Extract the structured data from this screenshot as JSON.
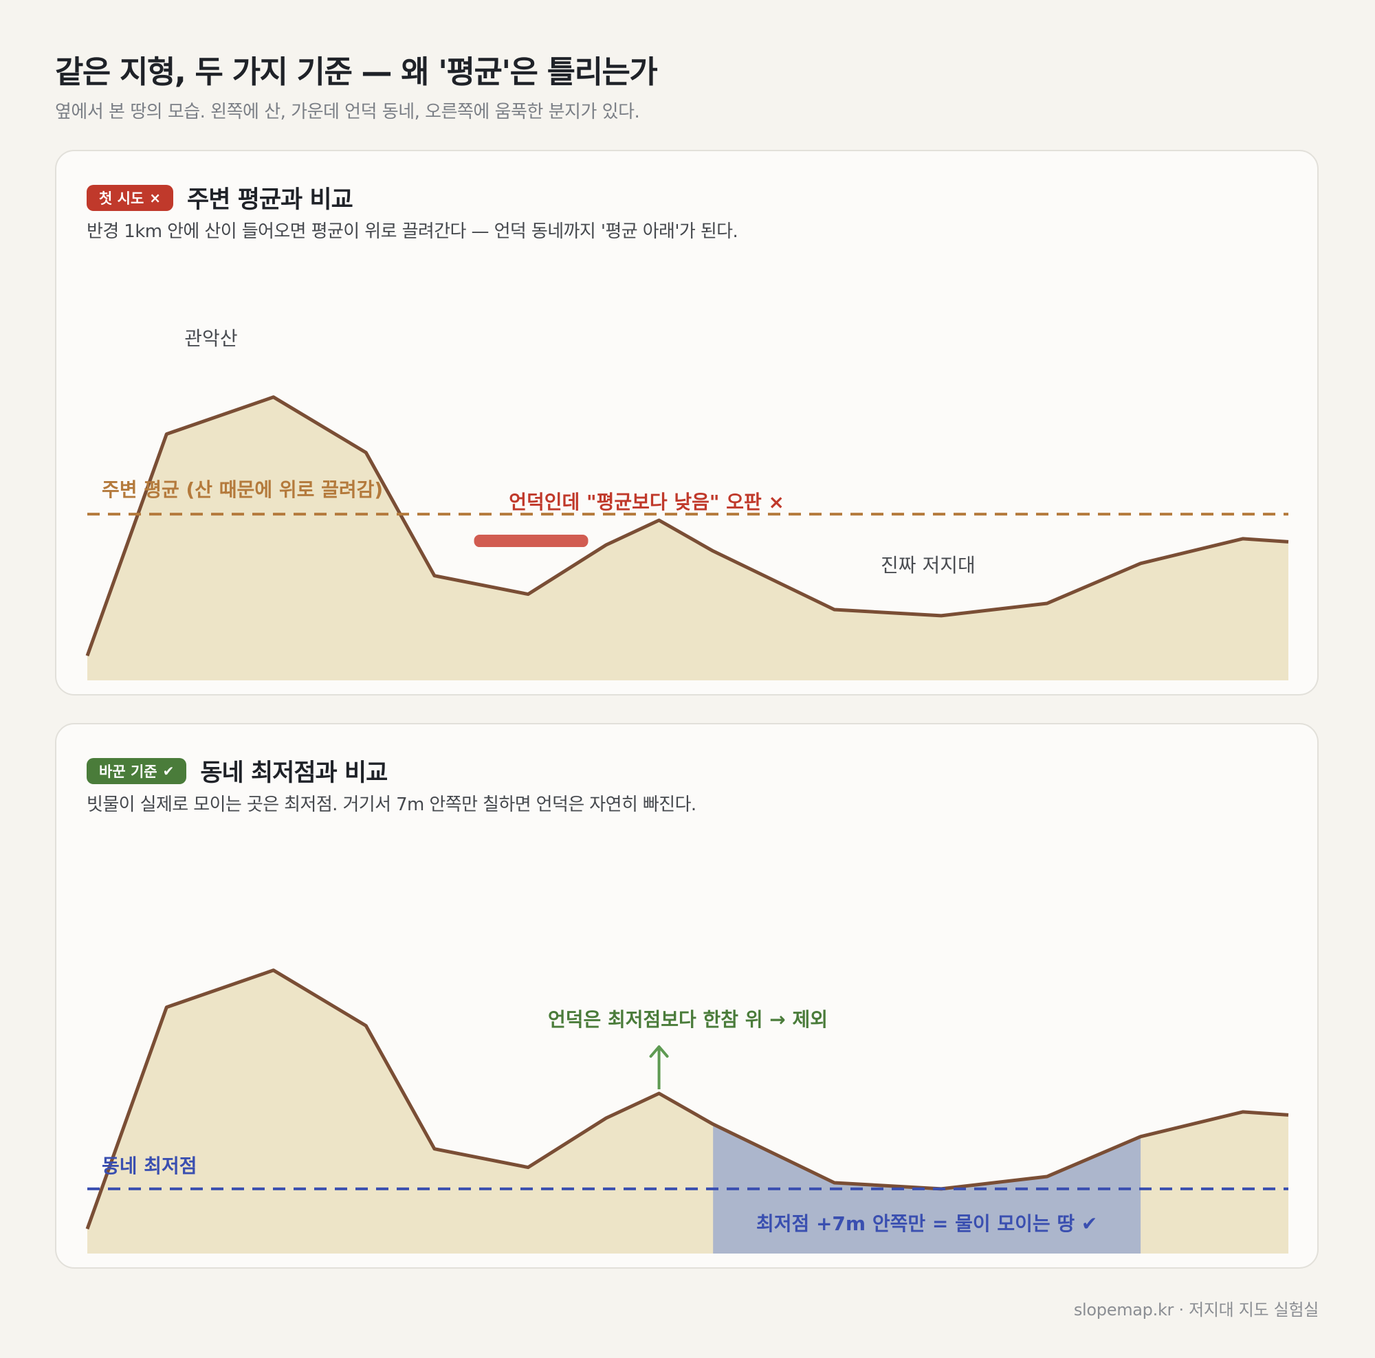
{
  "header": {
    "title": "같은 지형, 두 가지 기준 — 왜 '평균'은 틀리는가",
    "subtitle": "옆에서 본 땅의 모습. 왼쪽에 산, 가운데 언덕 동네, 오른쪽에 움푹한 분지가 있다."
  },
  "terrain_profile": [
    {
      "x": 0,
      "elev": 4
    },
    {
      "x": 0.066,
      "elev": 40
    },
    {
      "x": 0.155,
      "elev": 46
    },
    {
      "x": 0.232,
      "elev": 37
    },
    {
      "x": 0.289,
      "elev": 17
    },
    {
      "x": 0.367,
      "elev": 14
    },
    {
      "x": 0.432,
      "elev": 22
    },
    {
      "x": 0.476,
      "elev": 26
    },
    {
      "x": 0.521,
      "elev": 21
    },
    {
      "x": 0.622,
      "elev": 11.5
    },
    {
      "x": 0.711,
      "elev": 10.5
    },
    {
      "x": 0.799,
      "elev": 12.5
    },
    {
      "x": 0.877,
      "elev": 19
    },
    {
      "x": 0.962,
      "elev": 23
    },
    {
      "x": 1,
      "elev": 22.5
    }
  ],
  "panel1": {
    "badge": "첫 시도",
    "badge_mark": "×",
    "badge_color": "#c0392b",
    "title": "주변 평균과 비교",
    "description": "반경 1km 안에 산이 들어오면 평균이 위로 끌려간다 — 언덕 동네까지 '평균 아래'가 된다.",
    "label_mountain": "관악산",
    "label_low": "진짜 저지대",
    "avg_label": "주변 평균 (산 때문에 위로 끌려감)",
    "avg_level": 27,
    "avg_color": "#b47a3c",
    "wrong_label": "언덕인데 \"평균보다 낮음\" 오판 ×",
    "wrong_color": "#c0392b",
    "wrong_highlight_color": "#cc4a3e"
  },
  "panel2": {
    "badge": "바꾼 기준",
    "badge_mark": "✔",
    "badge_color": "#4a7c3a",
    "title": "동네 최저점과 비교",
    "description": "빗물이 실제로 모이는 곳은 최저점. 거기서 7m 안쪽만 칠하면 언덕은 자연히 빠진다.",
    "min_label": "동네 최저점",
    "min_level": 10.5,
    "min_color": "#3a4fb0",
    "hill_label": "언덕은 최저점보다 한참 위 → 제외",
    "hill_color": "#4a7c3a",
    "zone_label": "최저점 +7m 안쪽만 = 물이 모이는 땅 ✔",
    "zone_fill": "#a9b3cc",
    "threshold_m": 7
  },
  "colors": {
    "terrain_fill": "#ede4c7",
    "terrain_line": "#7a4e35"
  },
  "footer": "slopemap.kr · 저지대 지도 실험실"
}
